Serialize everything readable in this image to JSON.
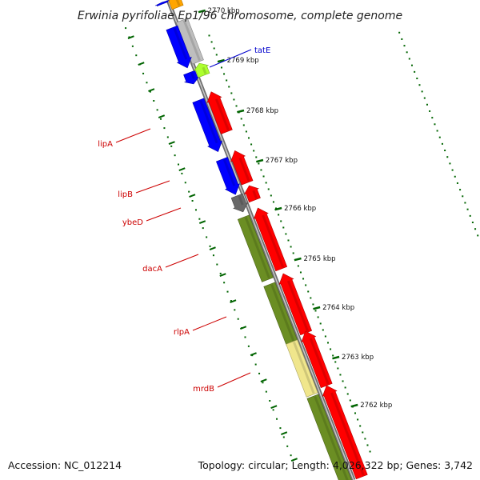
{
  "title": "Erwinia pyrifoliae Ep1/96 chromosome, complete genome",
  "footer": {
    "accession": "Accession: NC_012214",
    "topology": "Topology: circular; Length: 4,026,322 bp; Genes: 3,742"
  },
  "colors": {
    "forward_cds": "#ff0000",
    "reverse_cds": "#0000ff",
    "olive": "#6b8e23",
    "khaki": "#f0e68c",
    "grey": "#bebebe",
    "dark_grey": "#696969",
    "lime": "#adff2f",
    "orange": "#ffa500",
    "tick_green": "#006400",
    "backbone": "#808080",
    "gene_label_red": "#cc0000",
    "gene_label_blue": "#0000cc"
  },
  "ticks": [
    {
      "label": "2770 kbp"
    },
    {
      "label": "2769 kbp"
    },
    {
      "label": "2768 kbp"
    },
    {
      "label": "2767 kbp"
    },
    {
      "label": "2766 kbp"
    },
    {
      "label": "2765 kbp"
    },
    {
      "label": "2764 kbp"
    },
    {
      "label": "2763 kbp"
    },
    {
      "label": "2762 kbp"
    }
  ],
  "gene_labels": [
    {
      "name": "tatE",
      "color": "blue"
    },
    {
      "name": "lipA",
      "color": "red"
    },
    {
      "name": "lipB",
      "color": "red"
    },
    {
      "name": "ybeD",
      "color": "red"
    },
    {
      "name": "dacA",
      "color": "red"
    },
    {
      "name": "rlpA",
      "color": "red"
    },
    {
      "name": "mrdB",
      "color": "red"
    }
  ]
}
